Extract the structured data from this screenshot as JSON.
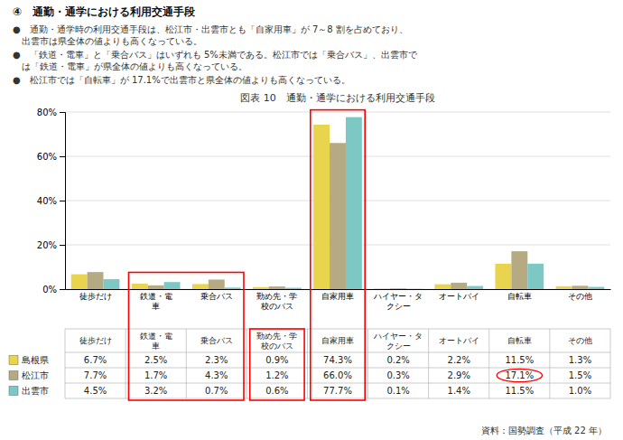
{
  "chart_data": {
    "type": "bar",
    "title": "図表 10　通勤・通学における利用交通手段",
    "annotations": [
      "④　通勤・通学における利用交通手段",
      "●　通勤・通学時の利用交通手段は、松江市・出雲市とも「自家用車」が 7～8 割を占めており、\n　出雲市は県全体の値よりも高くなっている。",
      "●　「鉄道・電車」と「乗合バス」はいずれも 5%未満である。松江市では「乗合バス」、出雲市で\n　は「鉄道・電車」が県全体の値よりも高くなっている。",
      "●　松江市では「自転車」が 17.1%で出雲市と県全体の値よりも高くなっている。",
      "資料：国勢調査（平成 22 年）"
    ],
    "categories": [
      "徒歩だけ",
      "鉄道・電\n車",
      "乗合バス",
      "勤め先・学\n校のバス",
      "自家用車",
      "ハイヤー・タ\nクシー",
      "オートバイ",
      "自転車",
      "その他"
    ],
    "series": [
      {
        "name": "島根県",
        "color": "#e8d44d",
        "values": [
          6.7,
          2.5,
          2.3,
          0.9,
          74.3,
          0.2,
          2.2,
          11.5,
          1.3
        ],
        "value_labels": [
          "6.7%",
          "2.5%",
          "2.3%",
          "0.9%",
          "74.3%",
          "0.2%",
          "2.2%",
          "11.5%",
          "1.3%"
        ]
      },
      {
        "name": "松江市",
        "color": "#b5aa82",
        "values": [
          7.7,
          1.7,
          4.3,
          1.2,
          66.0,
          0.3,
          2.9,
          17.1,
          1.5
        ],
        "value_labels": [
          "7.7%",
          "1.7%",
          "4.3%",
          "1.2%",
          "66.0%",
          "0.3%",
          "2.9%",
          "17.1%",
          "1.5%"
        ]
      },
      {
        "name": "出雲市",
        "color": "#7dc8c5",
        "values": [
          4.5,
          3.2,
          0.7,
          0.6,
          77.7,
          0.1,
          1.4,
          11.5,
          1.0
        ],
        "value_labels": [
          "4.5%",
          "3.2%",
          "0.7%",
          "0.6%",
          "77.7%",
          "0.1%",
          "1.4%",
          "11.5%",
          "1.0%"
        ]
      }
    ],
    "ylim": [
      0,
      80
    ],
    "yticks": [
      {
        "value": 0,
        "label": "0%"
      },
      {
        "value": 20,
        "label": "20%"
      },
      {
        "value": 40,
        "label": "40%"
      },
      {
        "value": 60,
        "label": "60%"
      },
      {
        "value": 80,
        "label": "80%"
      }
    ],
    "grid": true,
    "data_labels": true
  }
}
